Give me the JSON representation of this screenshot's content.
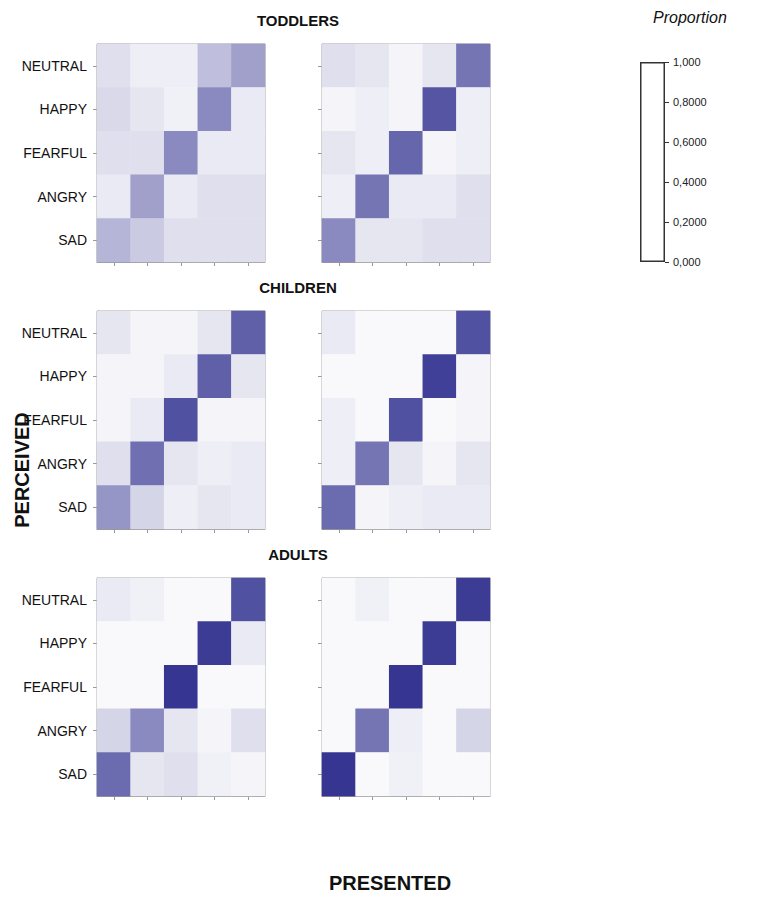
{
  "chart_data": {
    "type": "heatmap",
    "x_label": "PRESENTED",
    "y_label": "PERCEIVED",
    "x_categories": [
      null,
      null,
      null,
      null,
      null
    ],
    "y_categories": [
      "NEUTRAL",
      "HAPPY",
      "FEARFUL",
      "ANGRY",
      "SAD"
    ],
    "colorbar": {
      "title": "Proportion",
      "range": [
        0,
        1
      ],
      "ticks": [
        {
          "value": 0,
          "label": "0,000"
        },
        {
          "value": 0.2,
          "label": "0,2000"
        },
        {
          "value": 0.4,
          "label": "0,4000"
        },
        {
          "value": 0.6,
          "label": "0,6000"
        },
        {
          "value": 0.8,
          "label": "0,8000"
        },
        {
          "value": 1,
          "label": "1,000"
        }
      ],
      "colors": [
        "#ffffff",
        "#2b2b8c"
      ]
    },
    "rows": [
      {
        "title": "TODDLERS",
        "panels": [
          {
            "tick_labels": "y",
            "cells": [
              [
                0.15,
                0.08,
                0.08,
                0.3,
                0.45
              ],
              [
                0.18,
                0.12,
                0.07,
                0.55,
                0.1
              ],
              [
                0.15,
                0.15,
                0.55,
                0.1,
                0.1
              ],
              [
                0.1,
                0.45,
                0.1,
                0.15,
                0.15
              ],
              [
                0.35,
                0.25,
                0.15,
                0.15,
                0.15
              ]
            ]
          },
          {
            "tick_labels": false,
            "cells": [
              [
                0.15,
                0.12,
                0.05,
                0.12,
                0.65
              ],
              [
                0.05,
                0.08,
                0.05,
                0.8,
                0.08
              ],
              [
                0.12,
                0.08,
                0.72,
                0.05,
                0.08
              ],
              [
                0.08,
                0.65,
                0.1,
                0.1,
                0.15
              ],
              [
                0.55,
                0.12,
                0.12,
                0.15,
                0.15
              ]
            ]
          }
        ]
      },
      {
        "title": "CHILDREN",
        "panels": [
          {
            "tick_labels": "y",
            "cells": [
              [
                0.12,
                0.05,
                0.05,
                0.12,
                0.75
              ],
              [
                0.05,
                0.05,
                0.1,
                0.75,
                0.12
              ],
              [
                0.05,
                0.1,
                0.82,
                0.05,
                0.05
              ],
              [
                0.15,
                0.68,
                0.12,
                0.08,
                0.1
              ],
              [
                0.5,
                0.2,
                0.08,
                0.12,
                0.1
              ]
            ]
          },
          {
            "tick_labels": false,
            "cells": [
              [
                0.1,
                0.03,
                0.03,
                0.03,
                0.82
              ],
              [
                0.03,
                0.03,
                0.03,
                0.9,
                0.05
              ],
              [
                0.08,
                0.03,
                0.82,
                0.03,
                0.05
              ],
              [
                0.08,
                0.65,
                0.12,
                0.05,
                0.12
              ],
              [
                0.7,
                0.05,
                0.08,
                0.1,
                0.1
              ]
            ]
          }
        ]
      },
      {
        "title": "ADULTS",
        "panels": [
          {
            "tick_labels": "y",
            "cells": [
              [
                0.1,
                0.07,
                0.03,
                0.03,
                0.82
              ],
              [
                0.03,
                0.03,
                0.03,
                0.92,
                0.1
              ],
              [
                0.03,
                0.03,
                0.95,
                0.03,
                0.03
              ],
              [
                0.2,
                0.55,
                0.12,
                0.05,
                0.15
              ],
              [
                0.7,
                0.12,
                0.15,
                0.07,
                0.05
              ]
            ]
          },
          {
            "tick_labels": false,
            "cells": [
              [
                0.03,
                0.07,
                0.03,
                0.03,
                0.92
              ],
              [
                0.03,
                0.03,
                0.03,
                0.92,
                0.03
              ],
              [
                0.03,
                0.03,
                0.95,
                0.03,
                0.03
              ],
              [
                0.03,
                0.65,
                0.08,
                0.03,
                0.2
              ],
              [
                0.95,
                0.03,
                0.07,
                0.03,
                0.03
              ]
            ]
          }
        ]
      }
    ]
  }
}
